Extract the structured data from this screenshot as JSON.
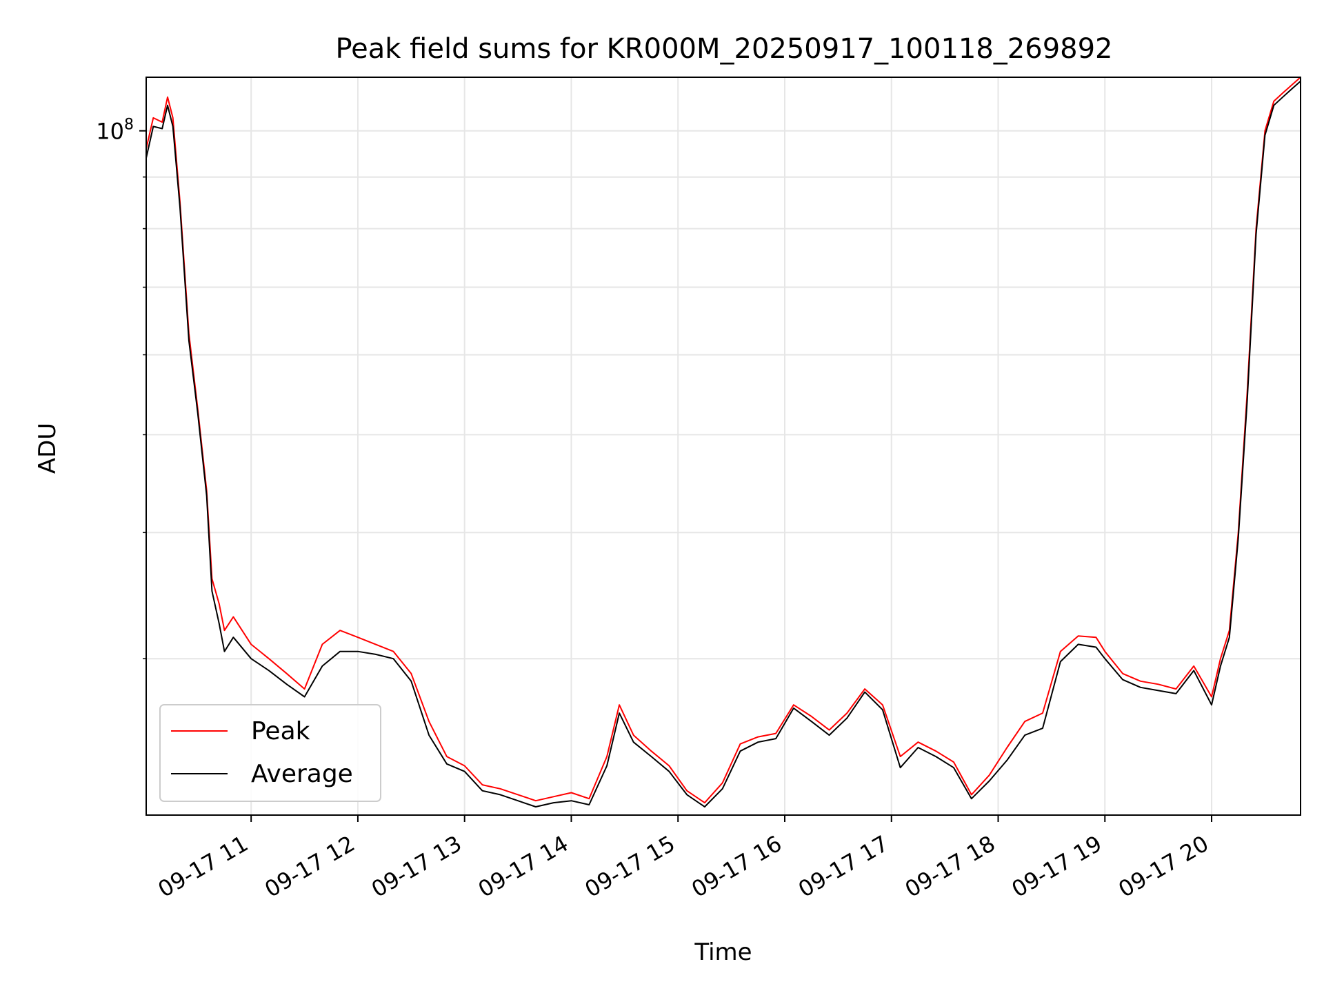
{
  "chart_data": {
    "type": "line",
    "title": "Peak field sums for KR000M_20250917_100118_269892",
    "xlabel": "Time",
    "ylabel": "ADU",
    "yscale": "log",
    "grid": true,
    "legend_position": "lower-left",
    "xlim": [
      "2025-09-17 10:01",
      "2025-09-17 20:50"
    ],
    "ylim": [
      21000000,
      113000000
    ],
    "x_ticks": [
      "09-17 11",
      "09-17 12",
      "09-17 13",
      "09-17 14",
      "09-17 15",
      "09-17 16",
      "09-17 17",
      "09-17 18",
      "09-17 19",
      "09-17 20"
    ],
    "x_tick_times": [
      "2025-09-17 11:00",
      "2025-09-17 12:00",
      "2025-09-17 13:00",
      "2025-09-17 14:00",
      "2025-09-17 15:00",
      "2025-09-17 16:00",
      "2025-09-17 17:00",
      "2025-09-17 18:00",
      "2025-09-17 19:00",
      "2025-09-17 20:00"
    ],
    "y_major_ticks": [
      {
        "value": 100000000,
        "base": "10",
        "exp": "8"
      }
    ],
    "y_minor_ticks": [
      30000000,
      40000000,
      50000000,
      60000000,
      70000000,
      80000000,
      90000000
    ],
    "series": [
      {
        "name": "Peak",
        "color": "#ff0000",
        "x": [
          "2025-09-17 10:01",
          "2025-09-17 10:05",
          "2025-09-17 10:10",
          "2025-09-17 10:13",
          "2025-09-17 10:16",
          "2025-09-17 10:20",
          "2025-09-17 10:25",
          "2025-09-17 10:30",
          "2025-09-17 10:35",
          "2025-09-17 10:38",
          "2025-09-17 10:42",
          "2025-09-17 10:45",
          "2025-09-17 10:50",
          "2025-09-17 11:00",
          "2025-09-17 11:10",
          "2025-09-17 11:20",
          "2025-09-17 11:30",
          "2025-09-17 11:40",
          "2025-09-17 11:50",
          "2025-09-17 12:00",
          "2025-09-17 12:10",
          "2025-09-17 12:20",
          "2025-09-17 12:30",
          "2025-09-17 12:40",
          "2025-09-17 12:50",
          "2025-09-17 13:00",
          "2025-09-17 13:10",
          "2025-09-17 13:20",
          "2025-09-17 13:30",
          "2025-09-17 13:40",
          "2025-09-17 13:50",
          "2025-09-17 14:00",
          "2025-09-17 14:10",
          "2025-09-17 14:20",
          "2025-09-17 14:27",
          "2025-09-17 14:35",
          "2025-09-17 14:45",
          "2025-09-17 14:55",
          "2025-09-17 15:05",
          "2025-09-17 15:15",
          "2025-09-17 15:25",
          "2025-09-17 15:35",
          "2025-09-17 15:45",
          "2025-09-17 15:55",
          "2025-09-17 16:05",
          "2025-09-17 16:15",
          "2025-09-17 16:25",
          "2025-09-17 16:35",
          "2025-09-17 16:45",
          "2025-09-17 16:55",
          "2025-09-17 17:05",
          "2025-09-17 17:15",
          "2025-09-17 17:25",
          "2025-09-17 17:35",
          "2025-09-17 17:45",
          "2025-09-17 17:55",
          "2025-09-17 18:05",
          "2025-09-17 18:15",
          "2025-09-17 18:25",
          "2025-09-17 18:35",
          "2025-09-17 18:45",
          "2025-09-17 18:55",
          "2025-09-17 19:00",
          "2025-09-17 19:10",
          "2025-09-17 19:20",
          "2025-09-17 19:30",
          "2025-09-17 19:40",
          "2025-09-17 19:50",
          "2025-09-17 20:00",
          "2025-09-17 20:05",
          "2025-09-17 20:10",
          "2025-09-17 20:15",
          "2025-09-17 20:20",
          "2025-09-17 20:25",
          "2025-09-17 20:30",
          "2025-09-17 20:35",
          "2025-09-17 20:40",
          "2025-09-17 20:45",
          "2025-09-17 20:50"
        ],
        "y": [
          96000000,
          103000000,
          102000000,
          108000000,
          103000000,
          85000000,
          63000000,
          53000000,
          44000000,
          36000000,
          34000000,
          32000000,
          33000000,
          31000000,
          30000000,
          29000000,
          28000000,
          31000000,
          32000000,
          31500000,
          31000000,
          30500000,
          29000000,
          26000000,
          24000000,
          23500000,
          22500000,
          22300000,
          22000000,
          21700000,
          21900000,
          22100000,
          21800000,
          24000000,
          27000000,
          25200000,
          24300000,
          23500000,
          22200000,
          21600000,
          22600000,
          24700000,
          25100000,
          25300000,
          27000000,
          26300000,
          25500000,
          26500000,
          28000000,
          27000000,
          24000000,
          24800000,
          24300000,
          23700000,
          22000000,
          23000000,
          24500000,
          26000000,
          26500000,
          30500000,
          31600000,
          31500000,
          30500000,
          29000000,
          28500000,
          28300000,
          28000000,
          29500000,
          27500000,
          30000000,
          32000000,
          40000000,
          55000000,
          80000000,
          100000000,
          107000000,
          109000000,
          111000000,
          113000000
        ]
      },
      {
        "name": "Average",
        "color": "#000000",
        "x": [
          "2025-09-17 10:01",
          "2025-09-17 10:05",
          "2025-09-17 10:10",
          "2025-09-17 10:13",
          "2025-09-17 10:16",
          "2025-09-17 10:20",
          "2025-09-17 10:25",
          "2025-09-17 10:30",
          "2025-09-17 10:35",
          "2025-09-17 10:38",
          "2025-09-17 10:42",
          "2025-09-17 10:45",
          "2025-09-17 10:50",
          "2025-09-17 11:00",
          "2025-09-17 11:10",
          "2025-09-17 11:20",
          "2025-09-17 11:30",
          "2025-09-17 11:40",
          "2025-09-17 11:50",
          "2025-09-17 12:00",
          "2025-09-17 12:10",
          "2025-09-17 12:20",
          "2025-09-17 12:30",
          "2025-09-17 12:40",
          "2025-09-17 12:50",
          "2025-09-17 13:00",
          "2025-09-17 13:10",
          "2025-09-17 13:20",
          "2025-09-17 13:30",
          "2025-09-17 13:40",
          "2025-09-17 13:50",
          "2025-09-17 14:00",
          "2025-09-17 14:10",
          "2025-09-17 14:20",
          "2025-09-17 14:27",
          "2025-09-17 14:35",
          "2025-09-17 14:45",
          "2025-09-17 14:55",
          "2025-09-17 15:05",
          "2025-09-17 15:15",
          "2025-09-17 15:25",
          "2025-09-17 15:35",
          "2025-09-17 15:45",
          "2025-09-17 15:55",
          "2025-09-17 16:05",
          "2025-09-17 16:15",
          "2025-09-17 16:25",
          "2025-09-17 16:35",
          "2025-09-17 16:45",
          "2025-09-17 16:55",
          "2025-09-17 17:05",
          "2025-09-17 17:15",
          "2025-09-17 17:25",
          "2025-09-17 17:35",
          "2025-09-17 17:45",
          "2025-09-17 17:55",
          "2025-09-17 18:05",
          "2025-09-17 18:15",
          "2025-09-17 18:25",
          "2025-09-17 18:35",
          "2025-09-17 18:45",
          "2025-09-17 18:55",
          "2025-09-17 19:00",
          "2025-09-17 19:10",
          "2025-09-17 19:20",
          "2025-09-17 19:30",
          "2025-09-17 19:40",
          "2025-09-17 19:50",
          "2025-09-17 20:00",
          "2025-09-17 20:05",
          "2025-09-17 20:10",
          "2025-09-17 20:15",
          "2025-09-17 20:20",
          "2025-09-17 20:25",
          "2025-09-17 20:30",
          "2025-09-17 20:35",
          "2025-09-17 20:40",
          "2025-09-17 20:45",
          "2025-09-17 20:50"
        ],
        "y": [
          94000000,
          101000000,
          100500000,
          106000000,
          101000000,
          84000000,
          62000000,
          52500000,
          43500000,
          35000000,
          32500000,
          30500000,
          31500000,
          30000000,
          29200000,
          28300000,
          27500000,
          29500000,
          30500000,
          30500000,
          30300000,
          30000000,
          28500000,
          25200000,
          23600000,
          23200000,
          22200000,
          22000000,
          21700000,
          21400000,
          21600000,
          21700000,
          21500000,
          23500000,
          26500000,
          24800000,
          24000000,
          23200000,
          22000000,
          21400000,
          22300000,
          24300000,
          24800000,
          25000000,
          26800000,
          26000000,
          25200000,
          26200000,
          27800000,
          26700000,
          23400000,
          24500000,
          24000000,
          23400000,
          21800000,
          22700000,
          23800000,
          25200000,
          25600000,
          29800000,
          31000000,
          30800000,
          30000000,
          28600000,
          28100000,
          27900000,
          27700000,
          29200000,
          27000000,
          29500000,
          31500000,
          39500000,
          54000000,
          79000000,
          99000000,
          106000000,
          108000000,
          110000000,
          112000000
        ]
      }
    ]
  }
}
